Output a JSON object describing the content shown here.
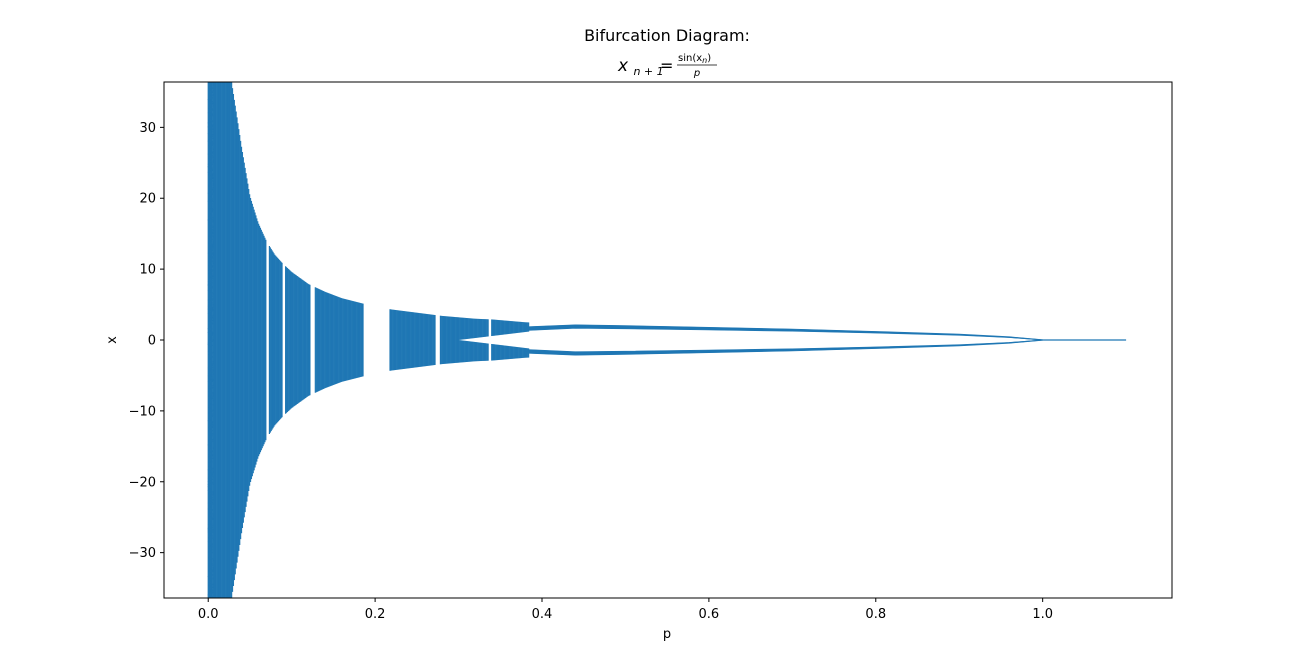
{
  "chart_data": {
    "type": "scatter",
    "title": "Bifurcation Diagram:",
    "subtitle": {
      "lhs_base": "x",
      "lhs_sub": "n + 1",
      "equals": "=",
      "numerator": "sin(x",
      "numerator_sub": "n",
      "numerator_close": ")",
      "denominator": "p"
    },
    "xlabel": "p",
    "ylabel": "x",
    "xlim": [
      -0.053,
      1.155
    ],
    "ylim": [
      -36.4,
      36.4
    ],
    "xticks": [
      {
        "value": 0.0,
        "label": "0.0"
      },
      {
        "value": 0.2,
        "label": "0.2"
      },
      {
        "value": 0.4,
        "label": "0.4"
      },
      {
        "value": 0.6,
        "label": "0.6"
      },
      {
        "value": 0.8,
        "label": "0.8"
      },
      {
        "value": 1.0,
        "label": "1.0"
      }
    ],
    "yticks": [
      {
        "value": 30,
        "label": "30"
      },
      {
        "value": 20,
        "label": "20"
      },
      {
        "value": 10,
        "label": "10"
      },
      {
        "value": 0,
        "label": "0"
      },
      {
        "value": -10,
        "label": "−10"
      },
      {
        "value": -20,
        "label": "−20"
      },
      {
        "value": -30,
        "label": "−30"
      }
    ],
    "series": [
      {
        "p_range": [
          0.0,
          1.1
        ],
        "color": "#1f77b4",
        "envelope_upper": [
          [
            0.028,
            36.4
          ],
          [
            0.04,
            27.2
          ],
          [
            0.05,
            20.3
          ],
          [
            0.06,
            16.5
          ],
          [
            0.07,
            13.9
          ],
          [
            0.08,
            12.0
          ],
          [
            0.09,
            10.7
          ],
          [
            0.1,
            9.6
          ],
          [
            0.12,
            7.9
          ],
          [
            0.14,
            6.8
          ],
          [
            0.16,
            5.9
          ],
          [
            0.18,
            5.3
          ],
          [
            0.2,
            4.7
          ],
          [
            0.22,
            4.3
          ],
          [
            0.24,
            4.0
          ],
          [
            0.26,
            3.7
          ],
          [
            0.28,
            3.4
          ],
          [
            0.3,
            3.2
          ],
          [
            0.32,
            3.0
          ],
          [
            0.34,
            2.9
          ],
          [
            0.36,
            2.7
          ],
          [
            0.38,
            2.5
          ],
          [
            0.4,
            2.4
          ],
          [
            0.42,
            2.3
          ],
          [
            0.44,
            2.2
          ]
        ],
        "periodic_window_gaps": [
          [
            0.07,
            0.073
          ],
          [
            0.089,
            0.092
          ],
          [
            0.122,
            0.128
          ],
          [
            0.186,
            0.217
          ],
          [
            0.272,
            0.278
          ],
          [
            0.336,
            0.339
          ]
        ],
        "period_two_branch": [
          [
            0.38,
            1.6
          ],
          [
            0.44,
            1.9
          ],
          [
            0.5,
            1.8
          ],
          [
            0.6,
            1.6
          ],
          [
            0.7,
            1.4
          ],
          [
            0.8,
            1.1
          ],
          [
            0.9,
            0.75
          ],
          [
            0.96,
            0.4
          ],
          [
            1.0,
            0.0
          ]
        ],
        "fixed_point_line": [
          [
            1.0,
            0.0
          ],
          [
            1.1,
            0.0
          ]
        ]
      }
    ],
    "grid": false,
    "legend": "none"
  }
}
